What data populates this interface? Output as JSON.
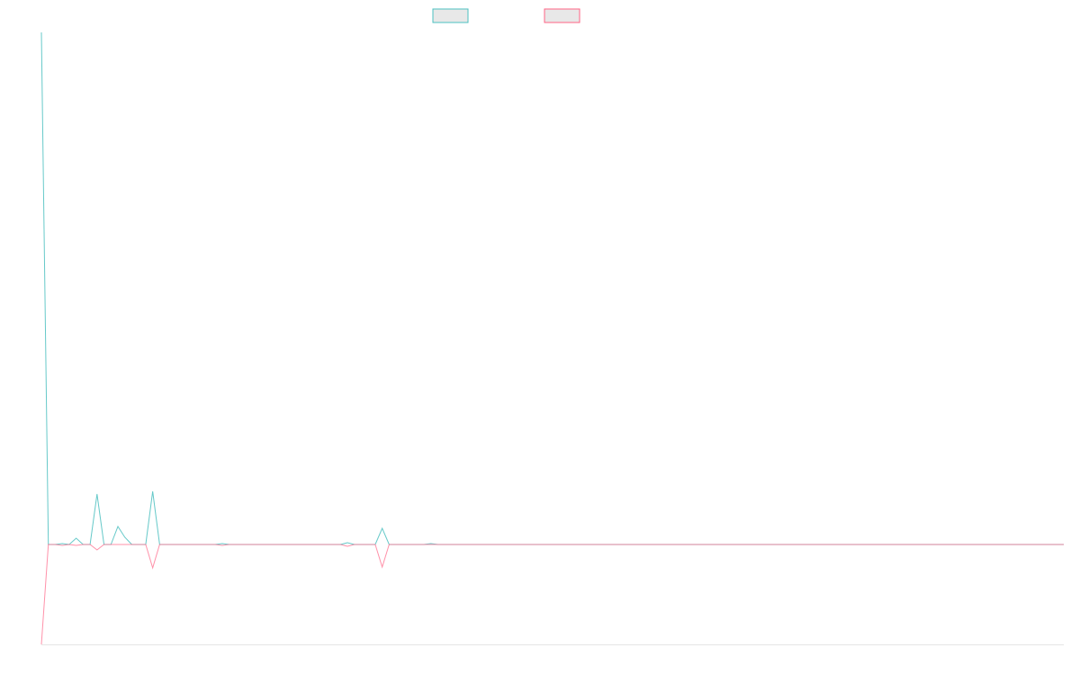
{
  "chart_data": {
    "type": "line",
    "x": [
      0,
      1,
      2,
      3,
      4,
      5,
      6,
      7,
      8,
      9,
      10,
      11,
      12,
      13,
      15,
      16,
      17,
      25,
      26,
      27,
      43,
      44,
      45,
      48,
      49,
      50,
      55,
      56,
      57,
      147
    ],
    "xlim": [
      0,
      147
    ],
    "ylim": [
      -111,
      569
    ],
    "series": [
      {
        "color": "#4bc0c0",
        "values": [
          569,
          0,
          0,
          1,
          0,
          7,
          0,
          0,
          56,
          0,
          0,
          20,
          8,
          0,
          0,
          59,
          0,
          0,
          1,
          0,
          0,
          2,
          0,
          0,
          18,
          0,
          0,
          1,
          0,
          0
        ]
      },
      {
        "color": "#ff6384",
        "values": [
          -111,
          0,
          0,
          -1,
          0,
          -1,
          0,
          0,
          -6,
          0,
          0,
          0,
          0,
          0,
          0,
          -26,
          0,
          0,
          -1,
          0,
          0,
          -2,
          0,
          0,
          -25,
          0,
          0,
          0,
          0,
          0
        ]
      }
    ]
  }
}
